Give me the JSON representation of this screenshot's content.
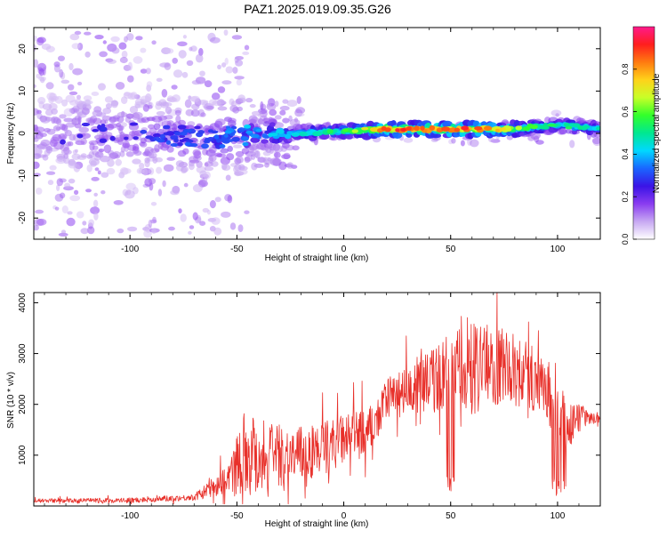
{
  "figure_title": "PAZ1.2025.019.09.35.G26",
  "colors": {
    "axis": "#000000",
    "snr_line": "#e8302a",
    "colormap": [
      "#ffffff",
      "#c7a8f2",
      "#8a3cf0",
      "#3a14e6",
      "#1a66ff",
      "#00d8ff",
      "#00e890",
      "#33ff2a",
      "#c8ff28",
      "#ffd21a",
      "#ff7a10",
      "#ff1e1e",
      "#ff1a8c"
    ]
  },
  "chart_data": [
    {
      "type": "heatmap",
      "xlabel": "Height of straight line (km)",
      "ylabel": "Frequency (Hz)",
      "xlim": [
        -145,
        120
      ],
      "ylim": [
        -25,
        25
      ],
      "xticks": [
        -100,
        -50,
        0,
        50,
        100
      ],
      "yticks": [
        -20,
        -10,
        0,
        10,
        20
      ],
      "colorbar": {
        "label": "Normalized spectral amplitude",
        "range": [
          0,
          1
        ],
        "ticks": [
          "0.0",
          "0.2",
          "0.4",
          "0.6",
          "0.8"
        ]
      },
      "ridge": {
        "description": "main spectral ridge near 0 Hz, broad and weak below -45 km, narrow and strong above",
        "center_hz": [
          {
            "x": -145,
            "y": 0
          },
          {
            "x": -100,
            "y": 0
          },
          {
            "x": -60,
            "y": -1
          },
          {
            "x": -40,
            "y": 0
          },
          {
            "x": -25,
            "y": 0
          },
          {
            "x": 0,
            "y": 0.5
          },
          {
            "x": 20,
            "y": 1
          },
          {
            "x": 50,
            "y": 1
          },
          {
            "x": 80,
            "y": 1
          },
          {
            "x": 100,
            "y": 2
          },
          {
            "x": 120,
            "y": 1
          }
        ],
        "peak_amplitude": [
          {
            "x": -145,
            "y": 0.25
          },
          {
            "x": -60,
            "y": 0.35
          },
          {
            "x": -40,
            "y": 0.45
          },
          {
            "x": -20,
            "y": 0.5
          },
          {
            "x": 0,
            "y": 0.6
          },
          {
            "x": 20,
            "y": 0.95
          },
          {
            "x": 60,
            "y": 0.95
          },
          {
            "x": 90,
            "y": 0.6
          },
          {
            "x": 110,
            "y": 0.55
          },
          {
            "x": 120,
            "y": 0.55
          }
        ]
      }
    },
    {
      "type": "line",
      "xlabel": "Height of straight line (km)",
      "ylabel": "SNR (10 * v/v)",
      "xlim": [
        -145,
        120
      ],
      "ylim": [
        0,
        4200
      ],
      "xticks": [
        -100,
        -50,
        0,
        50,
        100
      ],
      "yticks": [
        1000,
        2000,
        3000,
        4000
      ],
      "series": [
        {
          "envelope": [
            {
              "x": -145,
              "y": 100
            },
            {
              "x": -100,
              "y": 110
            },
            {
              "x": -70,
              "y": 170
            },
            {
              "x": -62,
              "y": 350
            },
            {
              "x": -52,
              "y": 600
            },
            {
              "x": -48,
              "y": 1100
            },
            {
              "x": -40,
              "y": 1000
            },
            {
              "x": -20,
              "y": 1000
            },
            {
              "x": 0,
              "y": 1300
            },
            {
              "x": 15,
              "y": 1600
            },
            {
              "x": 20,
              "y": 2100
            },
            {
              "x": 30,
              "y": 2300
            },
            {
              "x": 40,
              "y": 2450
            },
            {
              "x": 50,
              "y": 2650
            },
            {
              "x": 60,
              "y": 2700
            },
            {
              "x": 75,
              "y": 2750
            },
            {
              "x": 90,
              "y": 2500
            },
            {
              "x": 100,
              "y": 1800
            },
            {
              "x": 108,
              "y": 1500
            },
            {
              "x": 112,
              "y": 1750
            },
            {
              "x": 120,
              "y": 1700
            }
          ],
          "noise_amplitude": [
            {
              "x": -145,
              "y": 40
            },
            {
              "x": -70,
              "y": 60
            },
            {
              "x": -55,
              "y": 300
            },
            {
              "x": -45,
              "y": 900
            },
            {
              "x": -30,
              "y": 600
            },
            {
              "x": 0,
              "y": 500
            },
            {
              "x": 20,
              "y": 400
            },
            {
              "x": 45,
              "y": 700
            },
            {
              "x": 60,
              "y": 900
            },
            {
              "x": 80,
              "y": 700
            },
            {
              "x": 100,
              "y": 600
            },
            {
              "x": 108,
              "y": 500
            },
            {
              "x": 114,
              "y": 120
            },
            {
              "x": 120,
              "y": 80
            }
          ]
        }
      ]
    }
  ]
}
